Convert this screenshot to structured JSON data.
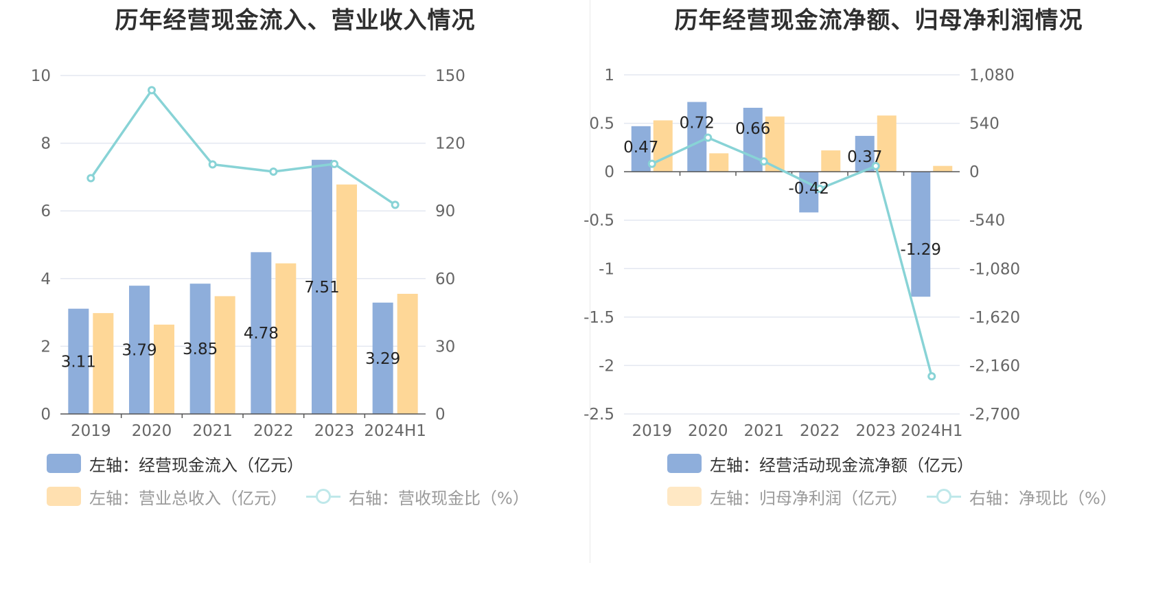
{
  "charts": [
    {
      "title": "历年经营现金流入、营业收入情况",
      "legend": [
        {
          "label": "左轴：经营现金流入（亿元）",
          "kind": "bar",
          "color": "#8eaedb",
          "faded": false
        },
        {
          "label": "左轴：营业总收入（亿元）",
          "kind": "bar",
          "color": "#ffe0b0",
          "faded": true
        },
        {
          "label": "右轴：营收现金比（%）",
          "kind": "line",
          "color": "#bfe8ea",
          "faded": true
        }
      ]
    },
    {
      "title": "历年经营现金流净额、归母净利润情况",
      "legend": [
        {
          "label": "左轴：经营活动现金流净额（亿元）",
          "kind": "bar",
          "color": "#8eaedb",
          "faded": false
        },
        {
          "label": "左轴：归母净利润（亿元）",
          "kind": "bar",
          "color": "#ffe8c4",
          "faded": true
        },
        {
          "label": "右轴：净现比（%）",
          "kind": "line",
          "color": "#bfe8ea",
          "faded": true
        }
      ]
    }
  ],
  "chart_data": [
    {
      "type": "bar",
      "title": "历年经营现金流入、营业收入情况",
      "categories": [
        "2019",
        "2020",
        "2021",
        "2022",
        "2023",
        "2024H1"
      ],
      "ylim": [
        0,
        10
      ],
      "y_ticks": [
        "0",
        "2",
        "4",
        "6",
        "8",
        "10"
      ],
      "y2lim": [
        0,
        150
      ],
      "y2_ticks": [
        "0",
        "30",
        "60",
        "90",
        "120",
        "150"
      ],
      "grid": true,
      "legend_position": "bottom",
      "series": [
        {
          "name": "经营现金流入（亿元）",
          "axis": "left",
          "type": "bar",
          "color": "#8eaedb",
          "values": [
            3.11,
            3.79,
            3.85,
            4.78,
            7.51,
            3.29
          ],
          "labels": [
            "3.11",
            "3.79",
            "3.85",
            "4.78",
            "7.51",
            "3.29"
          ]
        },
        {
          "name": "营业总收入（亿元）",
          "axis": "left",
          "type": "bar",
          "color": "#fed797",
          "values": [
            2.98,
            2.64,
            3.48,
            4.45,
            6.78,
            3.55
          ]
        },
        {
          "name": "营收现金比（%）",
          "axis": "right",
          "type": "line",
          "color": "#88d3d6",
          "values": [
            104.5,
            143.5,
            110.6,
            107.4,
            110.8,
            92.7
          ]
        }
      ]
    },
    {
      "type": "bar",
      "title": "历年经营现金流净额、归母净利润情况",
      "categories": [
        "2019",
        "2020",
        "2021",
        "2022",
        "2023",
        "2024H1"
      ],
      "ylim": [
        -2.5,
        1
      ],
      "y_ticks": [
        "-2.5",
        "-2",
        "-1.5",
        "-1",
        "-0.5",
        "0",
        "0.5",
        "1"
      ],
      "y2lim": [
        -2700,
        1080
      ],
      "y2_ticks": [
        "-2,700",
        "-2,160",
        "-1,620",
        "-1,080",
        "-540",
        "0",
        "540",
        "1,080"
      ],
      "grid": true,
      "legend_position": "bottom",
      "series": [
        {
          "name": "经营活动现金流净额（亿元）",
          "axis": "left",
          "type": "bar",
          "color": "#8eaedb",
          "values": [
            0.47,
            0.72,
            0.66,
            -0.42,
            0.37,
            -1.29
          ],
          "labels": [
            "0.47",
            "0.72",
            "0.66",
            "-0.42",
            "0.37",
            "-1.29"
          ]
        },
        {
          "name": "归母净利润（亿元）",
          "axis": "left",
          "type": "bar",
          "color": "#fed797",
          "values": [
            0.53,
            0.19,
            0.57,
            0.22,
            0.58,
            0.06
          ]
        },
        {
          "name": "净现比（%）",
          "axis": "right",
          "type": "line",
          "color": "#88d3d6",
          "values": [
            88,
            380,
            115,
            -190,
            63,
            -2280
          ]
        }
      ]
    }
  ]
}
